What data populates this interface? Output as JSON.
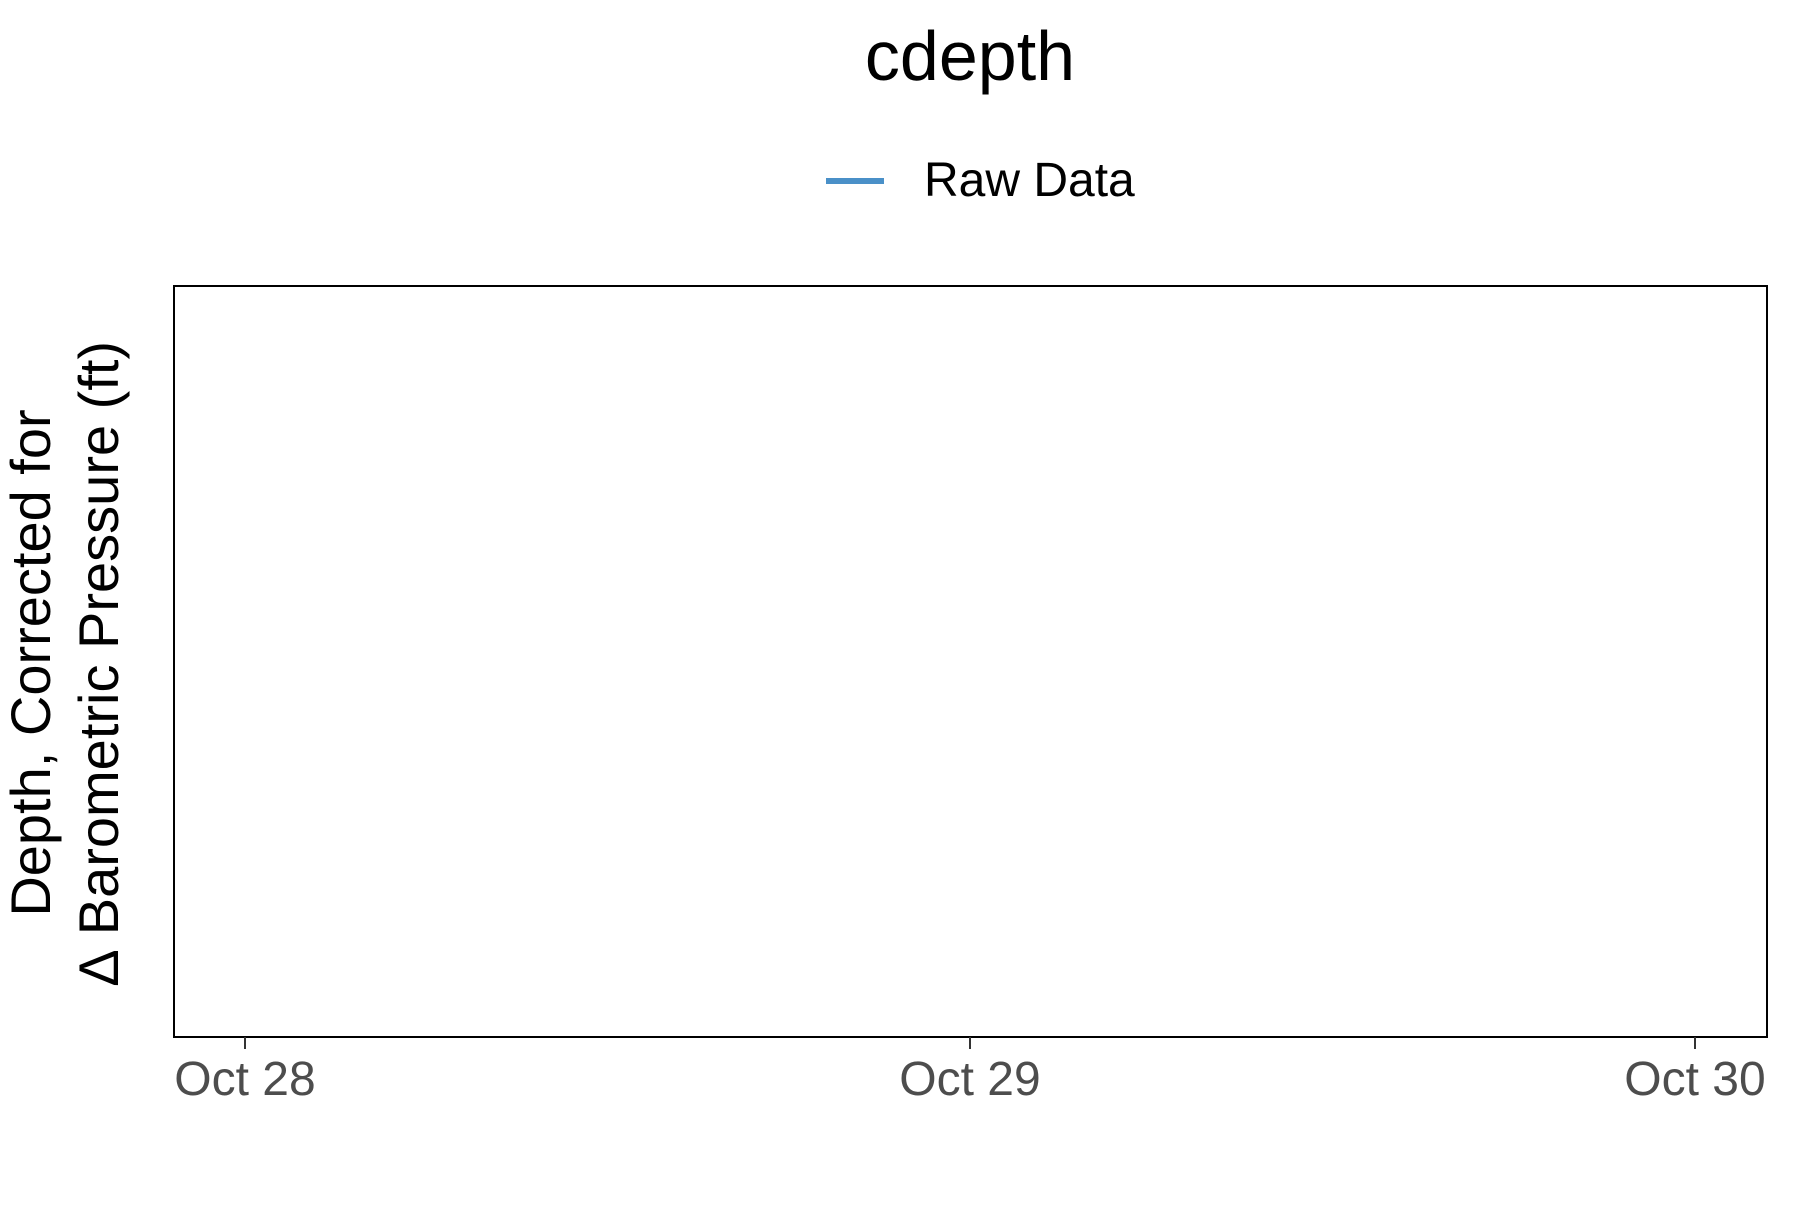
{
  "chart_data": {
    "type": "line",
    "title": "cdepth",
    "xlabel": "",
    "ylabel_lines": [
      "Depth, Corrected for",
      "∆ Barometric Pressure (ft)"
    ],
    "x_ticks": [
      "Oct 28",
      "Oct 29",
      "Oct 30"
    ],
    "y_ticks": [],
    "legend_position": "top",
    "grid": false,
    "series": [
      {
        "name": "Raw Data",
        "color": "#4a90c8",
        "x": [],
        "y": []
      }
    ]
  }
}
